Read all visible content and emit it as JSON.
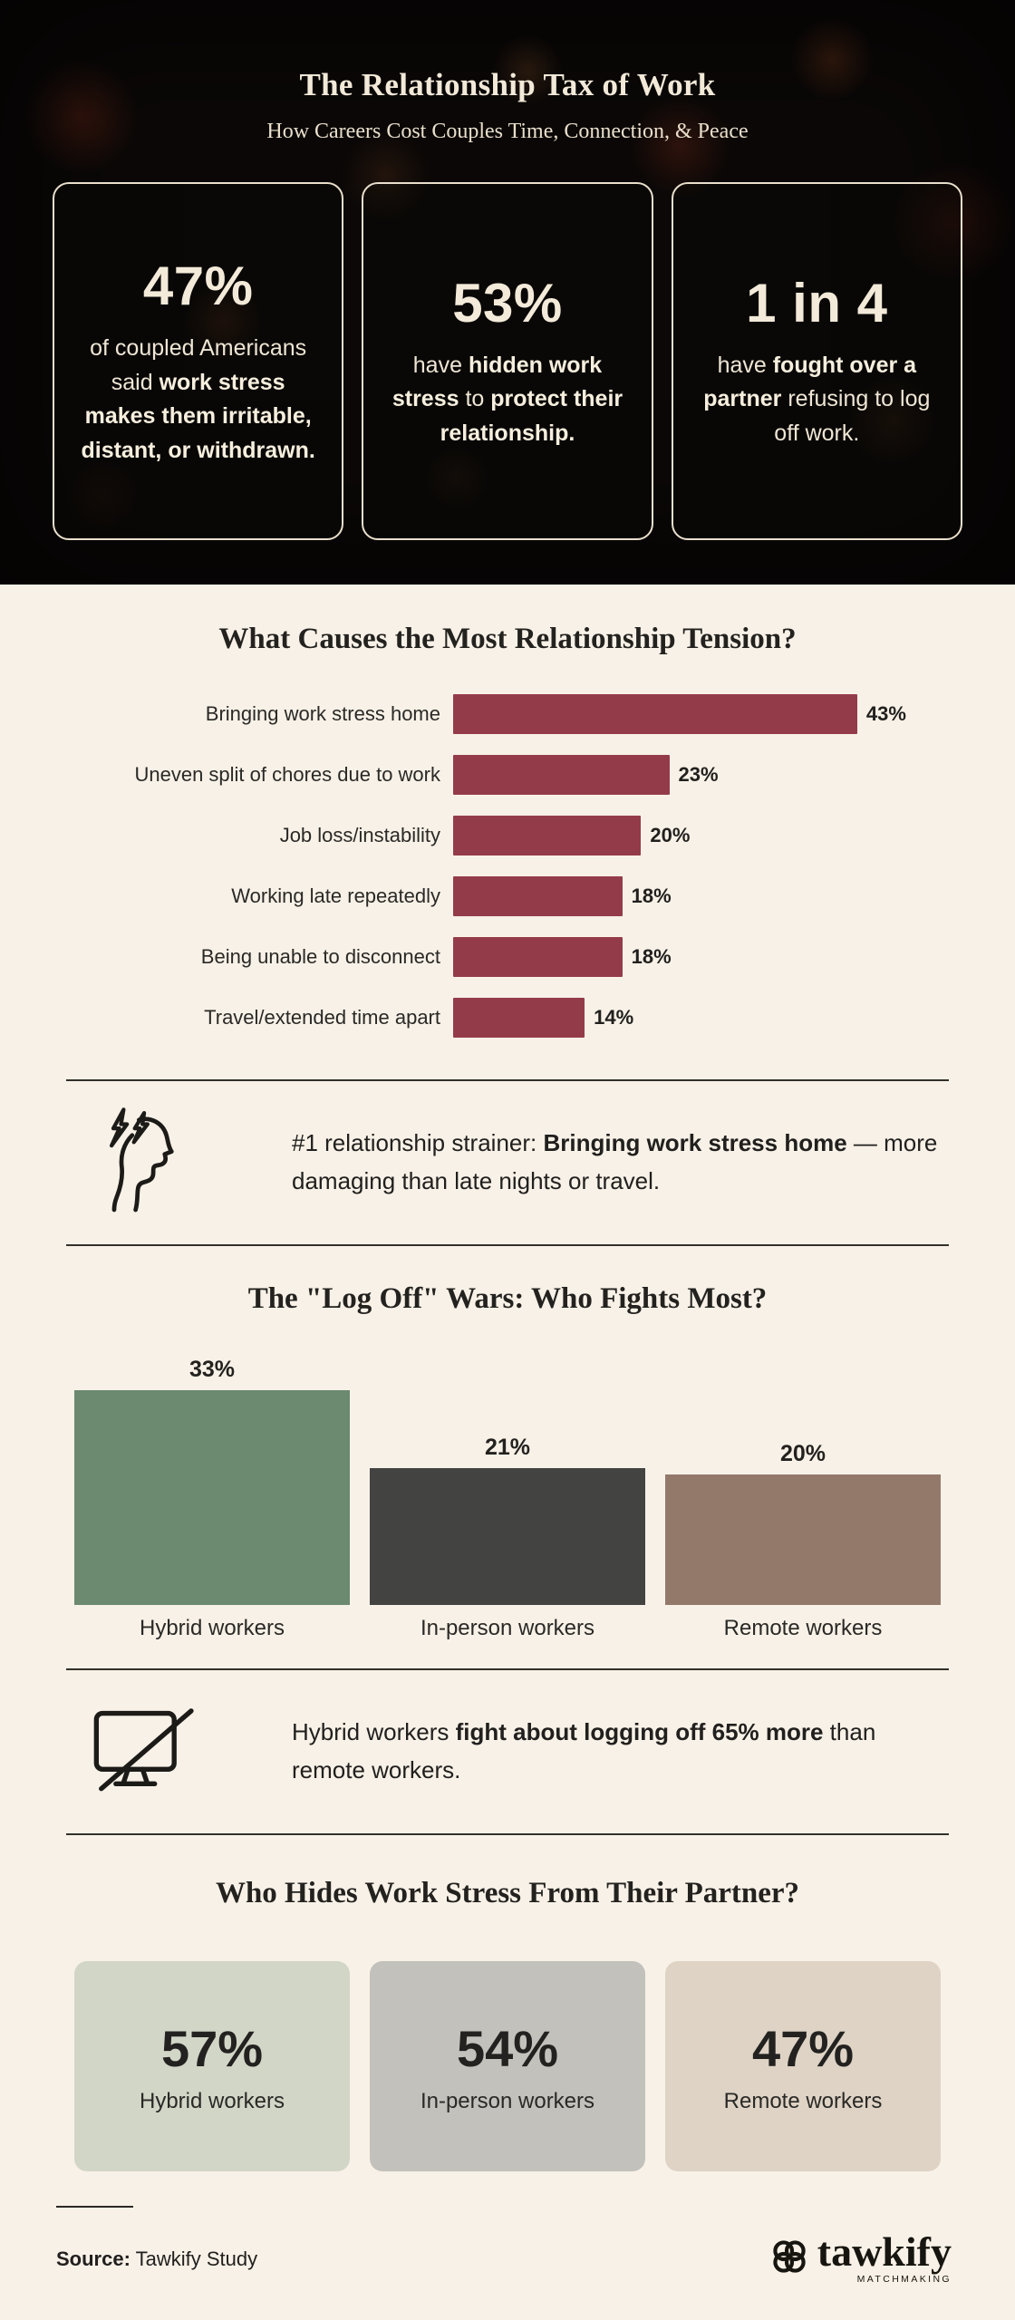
{
  "colors": {
    "page_background": "#f8f1e7",
    "dark_header_background": "#0b0807",
    "cream_text": "#f2e9d8",
    "maroon_bar": "#943b49",
    "divider": "#32302b"
  },
  "header": {
    "title": "The Relationship Tax of Work",
    "subtitle": "How Careers Cost Couples Time, Connection, & Peace",
    "stats": [
      {
        "value": "47%",
        "text": [
          {
            "t": "of coupled Americans said ",
            "b": false
          },
          {
            "t": "work stress makes them irritable, distant, or withdrawn.",
            "b": true
          }
        ]
      },
      {
        "value": "53%",
        "text": [
          {
            "t": "have ",
            "b": false
          },
          {
            "t": "hidden work stress",
            "b": true
          },
          {
            "t": " to ",
            "b": false
          },
          {
            "t": "protect their relationship.",
            "b": true
          }
        ]
      },
      {
        "value": "1 in 4",
        "text": [
          {
            "t": "have ",
            "b": false
          },
          {
            "t": "fought over a partner",
            "b": true
          },
          {
            "t": " refusing to log off work.",
            "b": false
          }
        ]
      }
    ]
  },
  "chart_data": [
    {
      "type": "bar",
      "orientation": "horizontal",
      "title": "What Causes the Most Relationship Tension?",
      "categories": [
        "Bringing work stress home",
        "Uneven split of chores due to work",
        "Job loss/instability",
        "Working late repeatedly",
        "Being unable to disconnect",
        "Travel/extended time apart"
      ],
      "values": [
        43,
        23,
        20,
        18,
        18,
        14
      ],
      "value_labels": [
        "43%",
        "23%",
        "20%",
        "18%",
        "18%",
        "14%"
      ],
      "bar_color": "#943b49",
      "xlim": [
        0,
        47
      ],
      "grid": false,
      "legend": "none"
    },
    {
      "type": "bar",
      "orientation": "vertical",
      "title": "The \"Log Off\" Wars: Who Fights Most?",
      "categories": [
        "Hybrid workers",
        "In-person workers",
        "Remote workers"
      ],
      "values": [
        33,
        21,
        20
      ],
      "value_labels": [
        "33%",
        "21%",
        "20%"
      ],
      "bar_colors": [
        "#6b8a70",
        "#434342",
        "#93796a"
      ],
      "ylim": [
        0,
        35
      ],
      "grid": false,
      "legend": "none"
    }
  ],
  "callouts": [
    {
      "icon": "stressed-head-icon",
      "text": [
        {
          "t": "#1 relationship strainer: ",
          "b": false
        },
        {
          "t": "Bringing work stress home",
          "b": true
        },
        {
          "t": " — more damaging than late nights or travel.",
          "b": false
        }
      ]
    },
    {
      "icon": "monitor-off-icon",
      "text": [
        {
          "t": "Hybrid workers ",
          "b": false
        },
        {
          "t": "fight about logging off 65% more",
          "b": true
        },
        {
          "t": " than remote workers.",
          "b": false
        }
      ]
    }
  ],
  "hides_section": {
    "title": "Who Hides Work Stress From Their Partner?",
    "cards": [
      {
        "value": "57%",
        "label": "Hybrid workers",
        "bg": "#d2d6c7"
      },
      {
        "value": "54%",
        "label": "In-person workers",
        "bg": "#c2c1bb"
      },
      {
        "value": "47%",
        "label": "Remote workers",
        "bg": "#ded3c5"
      }
    ]
  },
  "footer": {
    "source_label": "Source:",
    "source_value": " Tawkify Study",
    "logo_text": "tawkify",
    "logo_sub": "MATCHMAKING"
  }
}
